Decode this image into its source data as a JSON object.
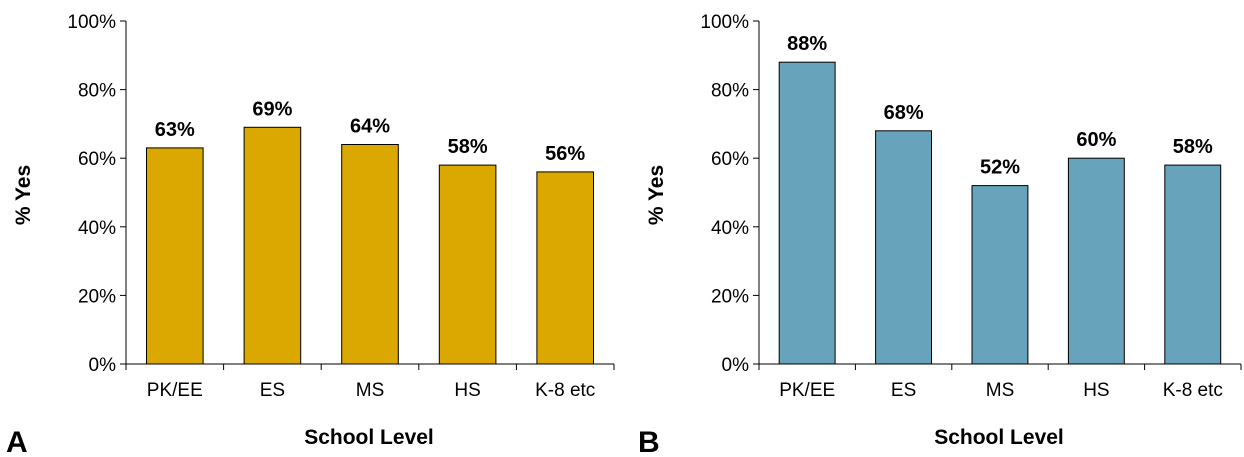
{
  "chart_data": [
    {
      "type": "bar",
      "panel_label": "A",
      "categories": [
        "PK/EE",
        "ES",
        "MS",
        "HS",
        "K-8 etc"
      ],
      "values": [
        63,
        69,
        64,
        58,
        56
      ],
      "data_labels": [
        "63%",
        "69%",
        "64%",
        "58%",
        "56%"
      ],
      "xlabel": "School Level",
      "ylabel": "% Yes",
      "ylim": [
        0,
        100
      ],
      "yticks": [
        "0%",
        "20%",
        "40%",
        "60%",
        "80%",
        "100%"
      ],
      "bar_color": "#DAA800",
      "grid": false,
      "legend": "none"
    },
    {
      "type": "bar",
      "panel_label": "B",
      "categories": [
        "PK/EE",
        "ES",
        "MS",
        "HS",
        "K-8 etc"
      ],
      "values": [
        88,
        68,
        52,
        60,
        58
      ],
      "data_labels": [
        "88%",
        "68%",
        "52%",
        "60%",
        "58%"
      ],
      "xlabel": "School Level",
      "ylabel": "% Yes",
      "ylim": [
        0,
        100
      ],
      "yticks": [
        "0%",
        "20%",
        "40%",
        "60%",
        "80%",
        "100%"
      ],
      "bar_color": "#67A3BA",
      "grid": false,
      "legend": "none"
    }
  ]
}
